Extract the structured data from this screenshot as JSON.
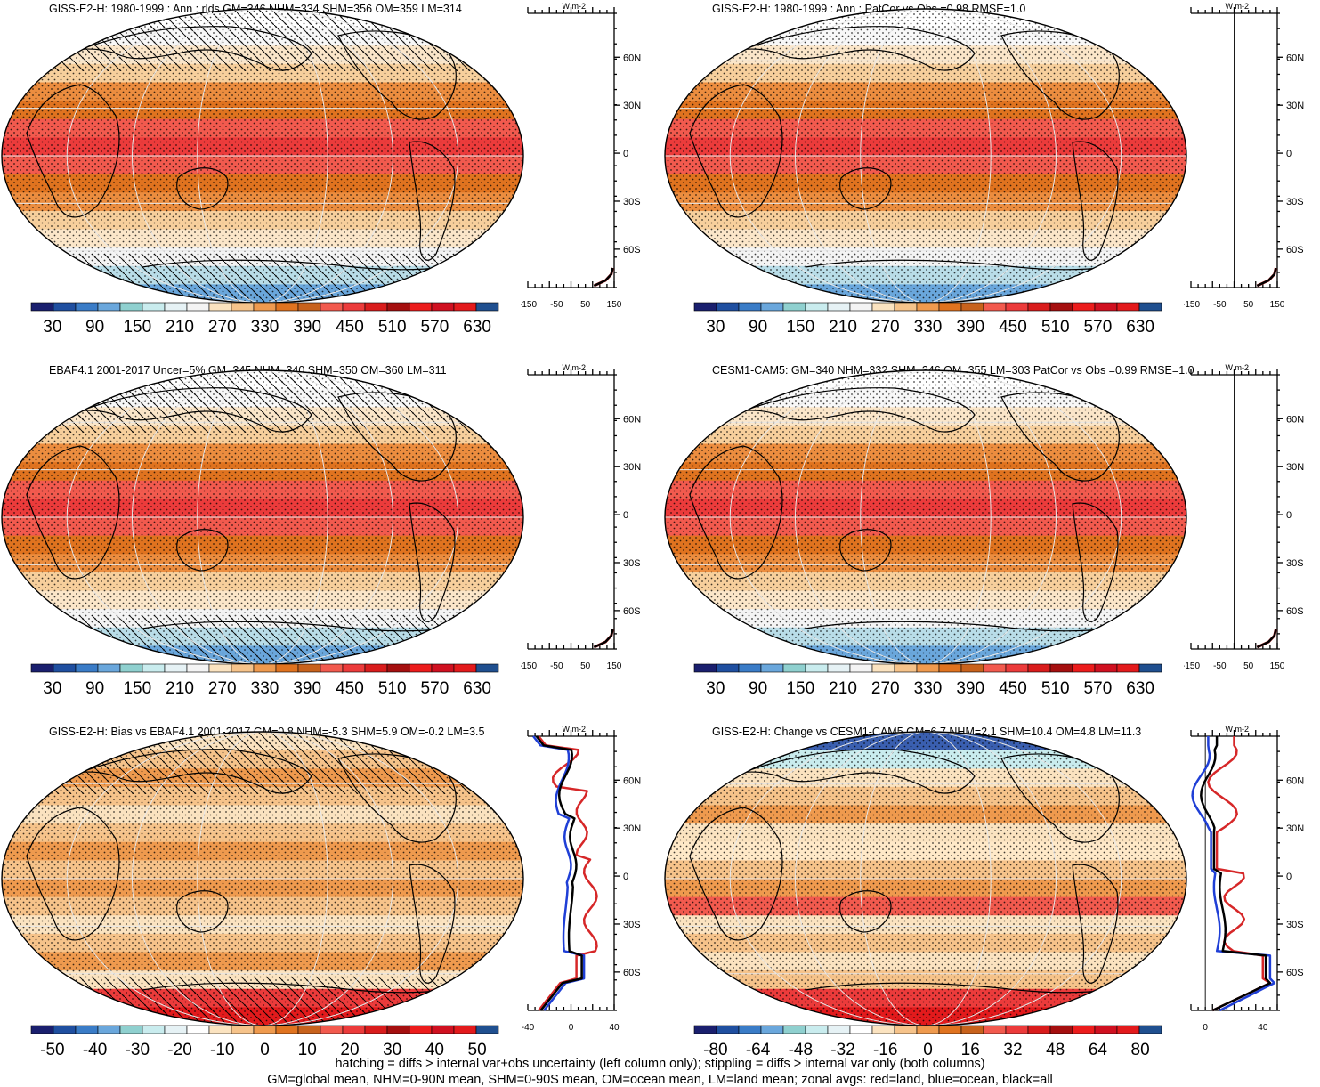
{
  "panels": [
    {
      "id": "p1",
      "title": "GISS-E2-H: 1980-1999 : Ann : rlds GM=346 NHM=334 SHM=356 OM=359 LM=314",
      "cmap": "abs",
      "cb_labels": [
        "30",
        "90",
        "150",
        "210",
        "270",
        "330",
        "390",
        "450",
        "510",
        "570",
        "630"
      ],
      "zonal": {
        "xticks": [
          "-150",
          "-50",
          "50",
          "150"
        ],
        "xrange": [
          -150,
          150
        ],
        "unit": "W m-2",
        "lat_labels": [
          "60N",
          "30N",
          "0",
          "30S",
          "60S"
        ],
        "mode": "abs"
      },
      "hatch": true
    },
    {
      "id": "p2",
      "title": "GISS-E2-H: 1980-1999 : Ann : PatCor vs Obs =0.98 RMSE=1.0",
      "cmap": "abs",
      "cb_labels": [
        "30",
        "90",
        "150",
        "210",
        "270",
        "330",
        "390",
        "450",
        "510",
        "570",
        "630"
      ],
      "zonal": {
        "xticks": [
          "-150",
          "-50",
          "50",
          "150"
        ],
        "xrange": [
          -150,
          150
        ],
        "unit": "W m-2",
        "lat_labels": [
          "60N",
          "30N",
          "0",
          "30S",
          "60S"
        ],
        "mode": "abs"
      },
      "hatch": false
    },
    {
      "id": "p3",
      "title": "EBAF4.1 2001-2017 Uncer=5% GM=345 NHM=340 SHM=350 OM=360 LM=311",
      "cmap": "abs",
      "cb_labels": [
        "30",
        "90",
        "150",
        "210",
        "270",
        "330",
        "390",
        "450",
        "510",
        "570",
        "630"
      ],
      "zonal": {
        "xticks": [
          "-150",
          "-50",
          "50",
          "150"
        ],
        "xrange": [
          -150,
          150
        ],
        "unit": "W m-2",
        "lat_labels": [
          "60N",
          "30N",
          "0",
          "30S",
          "60S"
        ],
        "mode": "abs"
      },
      "hatch": true
    },
    {
      "id": "p4",
      "title": "CESM1-CAM5: GM=340 NHM=332 SHM=346 OM=355 LM=303 PatCor vs Obs =0.99 RMSE=1.0",
      "cmap": "abs",
      "cb_labels": [
        "30",
        "90",
        "150",
        "210",
        "270",
        "330",
        "390",
        "450",
        "510",
        "570",
        "630"
      ],
      "zonal": {
        "xticks": [
          "-150",
          "-50",
          "50",
          "150"
        ],
        "xrange": [
          -150,
          150
        ],
        "unit": "W m-2",
        "lat_labels": [
          "60N",
          "30N",
          "0",
          "30S",
          "60S"
        ],
        "mode": "abs"
      },
      "hatch": false
    },
    {
      "id": "p5",
      "title": "GISS-E2-H: Bias vs EBAF4.1 2001-2017 GM=0.8 NHM=-5.3 SHM=5.9 OM=-0.2 LM=3.5",
      "cmap": "diff",
      "cb_labels": [
        "-50",
        "-40",
        "-30",
        "-20",
        "-10",
        "0",
        "10",
        "20",
        "30",
        "40",
        "50"
      ],
      "zonal": {
        "xticks": [
          "-40",
          "0",
          "40"
        ],
        "xrange": [
          -40,
          40
        ],
        "unit": "W m-2",
        "lat_labels": [
          "60N",
          "30N",
          "0",
          "30S",
          "60S"
        ],
        "mode": "bias"
      },
      "hatch": true
    },
    {
      "id": "p6",
      "title": "GISS-E2-H: Change vs CESM1-CAM5 GM=6.7 NHM=2.1 SHM=10.4 OM=4.8 LM=11.3",
      "cmap": "diff",
      "cb_labels": [
        "-80",
        "-64",
        "-48",
        "-32",
        "-16",
        "0",
        "16",
        "32",
        "48",
        "64",
        "80"
      ],
      "zonal": {
        "xticks": [
          "0",
          "40"
        ],
        "xrange": [
          -10,
          50
        ],
        "unit": "W m-2",
        "lat_labels": [
          "60N",
          "30N",
          "0",
          "30S",
          "60S"
        ],
        "mode": "change"
      },
      "hatch": false
    }
  ],
  "colors": {
    "abs": [
      "#1a1f6e",
      "#1f4fa0",
      "#3a7cc7",
      "#6aa7dc",
      "#8fd0cf",
      "#c9ecee",
      "#e6f2f5",
      "#f4f4f4",
      "#fbe3c0",
      "#f6c38a",
      "#ef9a4e",
      "#e0731f",
      "#c8621c",
      "#f25a4e",
      "#ec3b3b",
      "#d91c1c",
      "#a50f0f",
      "#ec1c1c",
      "#d01020",
      "#e31a1c",
      "#1f4f8f"
    ],
    "diff": [
      "#1a1f6e",
      "#1f4fa0",
      "#3a7cc7",
      "#6aa7dc",
      "#8fd0cf",
      "#c9ecee",
      "#e6f2f5",
      "#ffffff",
      "#fbe3c0",
      "#f6c38a",
      "#ef9a4e",
      "#e0731f",
      "#c8621c",
      "#f25a4e",
      "#ec3b3b",
      "#d91c1c",
      "#a50f0f",
      "#ec1c1c",
      "#d01020",
      "#e31a1c",
      "#1f4f8f"
    ],
    "land": "#d62728",
    "ocean": "#1f3fd6",
    "all": "#000000"
  },
  "chart_data": {
    "type": "heatmap",
    "variable": "rlds",
    "statistics": [
      {
        "panel": "GISS-E2-H: 1980-1999",
        "GM": 346,
        "NHM": 334,
        "SHM": 356,
        "OM": 359,
        "LM": 314
      },
      {
        "panel": "EBAF4.1 2001-2017",
        "GM": 345,
        "NHM": 340,
        "SHM": 350,
        "OM": 360,
        "LM": 311,
        "Uncer": "5%"
      },
      {
        "panel": "CESM1-CAM5",
        "GM": 340,
        "NHM": 332,
        "SHM": 346,
        "OM": 355,
        "LM": 303,
        "PatCor": 0.99,
        "RMSE": 1.0
      },
      {
        "panel": "GISS-E2-H: Bias vs EBAF4.1",
        "GM": 0.8,
        "NHM": -5.3,
        "SHM": 5.9,
        "OM": -0.2,
        "LM": 3.5
      },
      {
        "panel": "GISS-E2-H: Change vs CESM1-CAM5",
        "GM": 6.7,
        "NHM": 2.1,
        "SHM": 10.4,
        "OM": 4.8,
        "LM": 11.3
      }
    ],
    "patcor": {
      "GISS-E2-H": 0.98,
      "RMSE": 1.0
    }
  },
  "footer": {
    "line1": "hatching = diffs > internal var+obs uncertainty (left column only); stippling = diffs > internal var only (both columns)",
    "line2": "GM=global mean, NHM=0-90N mean, SHM=0-90S mean, OM=ocean mean, LM=land mean; zonal avgs: red=land, blue=ocean, black=all"
  }
}
